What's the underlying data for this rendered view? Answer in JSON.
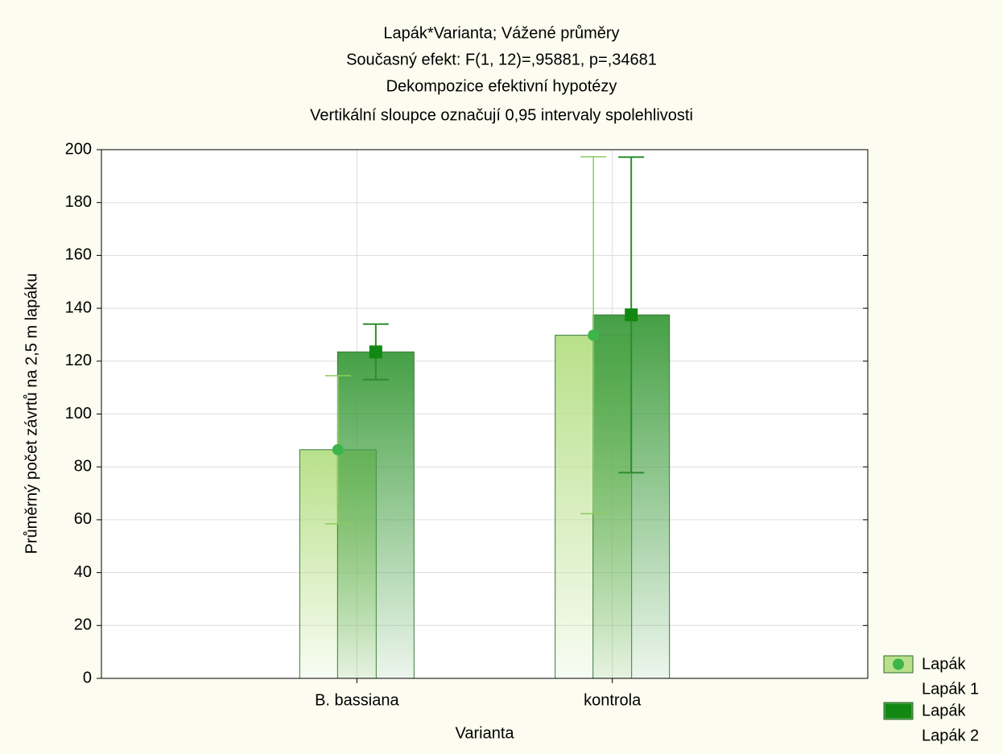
{
  "chart_data": {
    "type": "bar",
    "title": "Lapák*Varianta; Vážené průměry",
    "subtitles": [
      "Současný efekt: F(1, 12)=,95881, p=,34681",
      "Dekompozice efektivní hypotézy",
      "Vertikální sloupce označují 0,95 intervaly spolehlivosti"
    ],
    "x_label": "Varianta",
    "y_label": "Průměrný počet závrtů na 2,5 m lapáku",
    "categories": [
      "B. bassiana",
      "kontrola"
    ],
    "legend_title": "Lapák",
    "legend_position": "bottom-right",
    "series": [
      {
        "name": "Lapák 1",
        "color": "#b8e08a",
        "marker_color": "#3cb54a",
        "marker": "circle",
        "error_color": "#8ccc5c",
        "values": [
          86.5,
          129.8
        ],
        "errors": [
          28,
          67.5
        ]
      },
      {
        "name": "Lapák 2",
        "color": "#45a045",
        "marker_color": "#118811",
        "marker": "square",
        "error_color": "#2e8b2e",
        "values": [
          123.5,
          137.5
        ],
        "errors": [
          10.5,
          59.7
        ]
      }
    ],
    "ylim": [
      0,
      200
    ],
    "yticks": [
      0,
      20,
      40,
      60,
      80,
      100,
      120,
      140,
      160,
      180,
      200
    ],
    "grid": true
  }
}
